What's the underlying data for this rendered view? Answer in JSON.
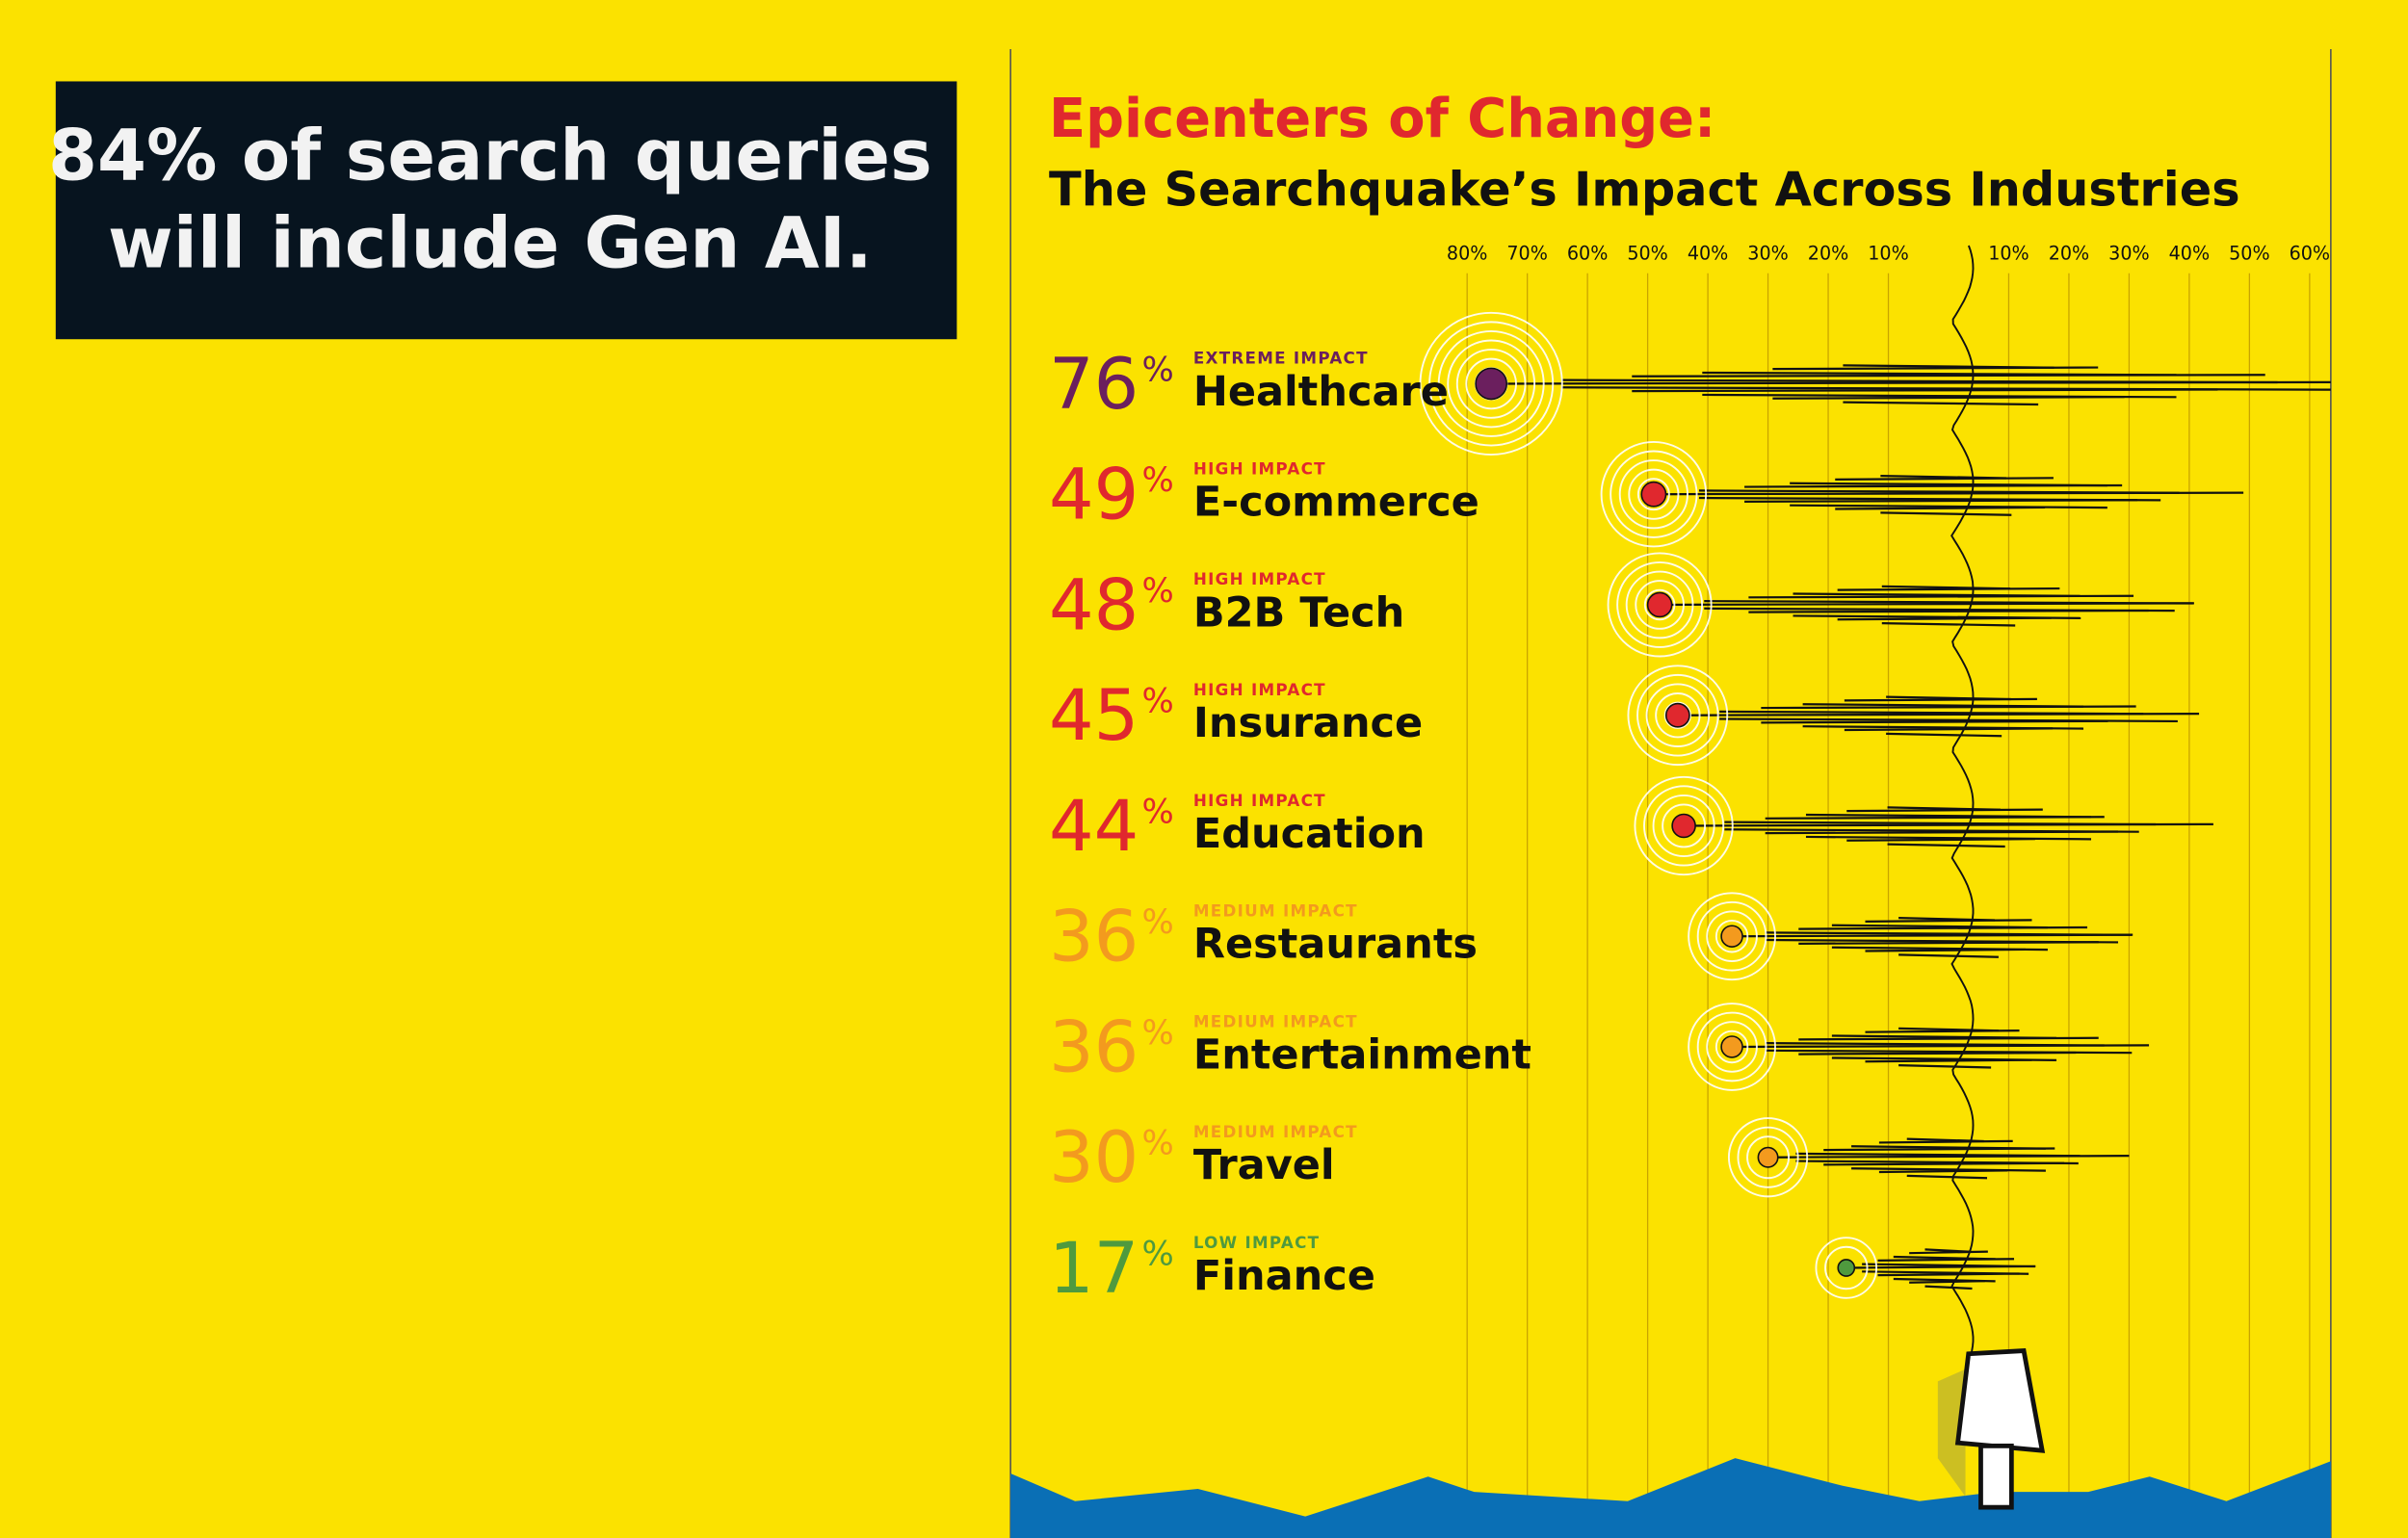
{
  "chart_data": {
    "type": "seismograph",
    "headline": [
      "84% of search queries",
      "will include Gen AI."
    ],
    "title": "Epicenters of Change:",
    "subtitle": "The Searchquake’s Impact Across Industries",
    "categories": [
      "Healthcare",
      "E-commerce",
      "B2B Tech",
      "Insurance",
      "Education",
      "Restaurants",
      "Entertainment",
      "Travel",
      "Finance"
    ],
    "impact": [
      "EXTREME IMPACT",
      "HIGH IMPACT",
      "HIGH IMPACT",
      "HIGH IMPACT",
      "HIGH IMPACT",
      "MEDIUM IMPACT",
      "MEDIUM IMPACT",
      "MEDIUM IMPACT",
      "LOW IMPACT"
    ],
    "values": [
      76,
      49,
      48,
      45,
      44,
      36,
      36,
      30,
      17
    ],
    "unit": "%",
    "colors": [
      "#6b1f5e",
      "#e0282e",
      "#e0282e",
      "#e0282e",
      "#e0282e",
      "#f39a1e",
      "#f39a1e",
      "#f39a1e",
      "#4f9a3e"
    ],
    "xticks_left": [
      {
        "value": 80,
        "label": "80%"
      },
      {
        "value": 70,
        "label": "70%"
      },
      {
        "value": 60,
        "label": "60%"
      },
      {
        "value": 50,
        "label": "50%"
      },
      {
        "value": 40,
        "label": "40%"
      },
      {
        "value": 30,
        "label": "30%"
      },
      {
        "value": 20,
        "label": "20%"
      },
      {
        "value": 10,
        "label": "10%"
      }
    ],
    "xticks_right": [
      {
        "value": 10,
        "label": "10%"
      },
      {
        "value": 20,
        "label": "20%"
      },
      {
        "value": 30,
        "label": "30%"
      },
      {
        "value": 40,
        "label": "40%"
      },
      {
        "value": 50,
        "label": "50%"
      },
      {
        "value": 60,
        "label": "60%"
      }
    ],
    "grid": true
  }
}
